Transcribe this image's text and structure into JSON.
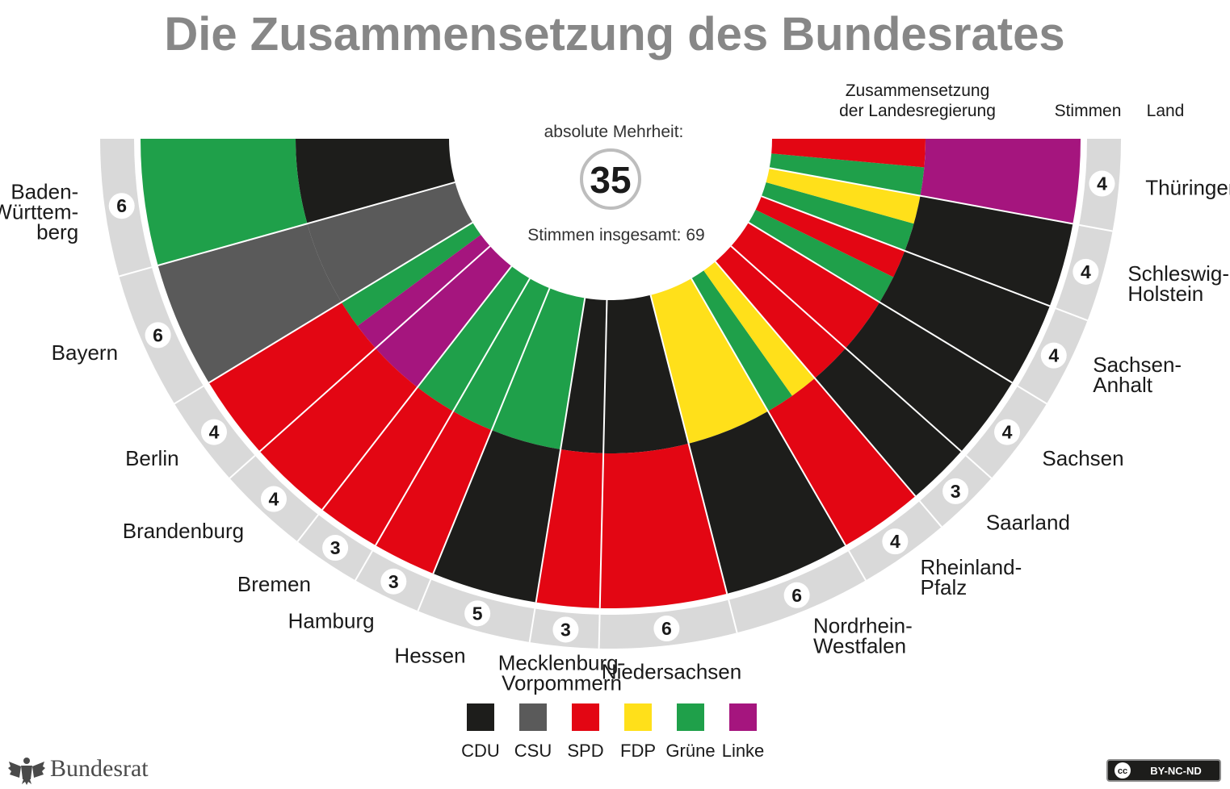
{
  "title": "Die Zusammensetzung des Bundesrates",
  "header": {
    "composition_line1": "Zusammensetzung",
    "composition_line2": "der Landesregierung",
    "votes": "Stimmen",
    "land": "Land"
  },
  "center": {
    "majority_label": "absolute Mehrheit:",
    "majority_value": "35",
    "total_label": "Stimmen insgesamt: 69"
  },
  "colors": {
    "CDU": "#1d1d1b",
    "CSU": "#5a5a5a",
    "SPD": "#e30613",
    "FDP": "#ffe01a",
    "Grüne": "#1fa04a",
    "Linke": "#a5157e",
    "ring": "#d9d9d9"
  },
  "chart_data": {
    "type": "semicircle-seat",
    "title": "Die Zusammensetzung des Bundesrates",
    "majority": 35,
    "total_votes": 69,
    "legend": [
      "CDU",
      "CSU",
      "SPD",
      "FDP",
      "Grüne",
      "Linke"
    ],
    "states": [
      {
        "name": "Baden-Württemberg",
        "label_lines": [
          "Baden-",
          "Württem-",
          "berg"
        ],
        "votes": 6,
        "inner": [
          "CDU"
        ],
        "outer": [
          "Grüne"
        ]
      },
      {
        "name": "Bayern",
        "label_lines": [
          "Bayern"
        ],
        "votes": 6,
        "inner": [
          "CSU"
        ],
        "outer": [
          "CSU"
        ]
      },
      {
        "name": "Berlin",
        "label_lines": [
          "Berlin"
        ],
        "votes": 4,
        "inner": [
          "Grüne",
          "Linke"
        ],
        "outer": [
          "SPD"
        ]
      },
      {
        "name": "Brandenburg",
        "label_lines": [
          "Brandenburg"
        ],
        "votes": 4,
        "inner": [
          "Linke"
        ],
        "outer": [
          "SPD"
        ]
      },
      {
        "name": "Bremen",
        "label_lines": [
          "Bremen"
        ],
        "votes": 3,
        "inner": [
          "Grüne"
        ],
        "outer": [
          "SPD"
        ]
      },
      {
        "name": "Hamburg",
        "label_lines": [
          "Hamburg"
        ],
        "votes": 3,
        "inner": [
          "Grüne"
        ],
        "outer": [
          "SPD"
        ]
      },
      {
        "name": "Hessen",
        "label_lines": [
          "Hessen"
        ],
        "votes": 5,
        "inner": [
          "Grüne"
        ],
        "outer": [
          "CDU"
        ]
      },
      {
        "name": "Mecklenburg-Vorpommern",
        "label_lines": [
          "Mecklenburg-",
          "Vorpommern"
        ],
        "votes": 3,
        "inner": [
          "CDU"
        ],
        "outer": [
          "SPD"
        ]
      },
      {
        "name": "Niedersachsen",
        "label_lines": [
          "Niedersachsen"
        ],
        "votes": 6,
        "inner": [
          "CDU"
        ],
        "outer": [
          "SPD"
        ]
      },
      {
        "name": "Nordrhein-Westfalen",
        "label_lines": [
          "Nordrhein-",
          "Westfalen"
        ],
        "votes": 6,
        "inner": [
          "FDP"
        ],
        "outer": [
          "CDU"
        ]
      },
      {
        "name": "Rheinland-Pfalz",
        "label_lines": [
          "Rheinland-",
          "Pfalz"
        ],
        "votes": 4,
        "inner": [
          "Grüne",
          "FDP"
        ],
        "outer": [
          "SPD"
        ]
      },
      {
        "name": "Saarland",
        "label_lines": [
          "Saarland"
        ],
        "votes": 3,
        "inner": [
          "SPD"
        ],
        "outer": [
          "CDU"
        ]
      },
      {
        "name": "Sachsen",
        "label_lines": [
          "Sachsen"
        ],
        "votes": 4,
        "inner": [
          "SPD"
        ],
        "outer": [
          "CDU"
        ]
      },
      {
        "name": "Sachsen-Anhalt",
        "label_lines": [
          "Sachsen-",
          "Anhalt"
        ],
        "votes": 4,
        "inner": [
          "Grüne",
          "SPD"
        ],
        "outer": [
          "CDU"
        ]
      },
      {
        "name": "Schleswig-Holstein",
        "label_lines": [
          "Schleswig-",
          "Holstein"
        ],
        "votes": 4,
        "inner": [
          "Grüne",
          "FDP"
        ],
        "outer": [
          "CDU"
        ]
      },
      {
        "name": "Thüringen",
        "label_lines": [
          "Thüringen"
        ],
        "votes": 4,
        "inner": [
          "Grüne",
          "SPD"
        ],
        "outer": [
          "Linke"
        ]
      }
    ]
  },
  "brand": {
    "name": "Bundesrat",
    "icon": "eagle-icon"
  },
  "license": {
    "badge": "cc",
    "text": "BY-NC-ND"
  }
}
